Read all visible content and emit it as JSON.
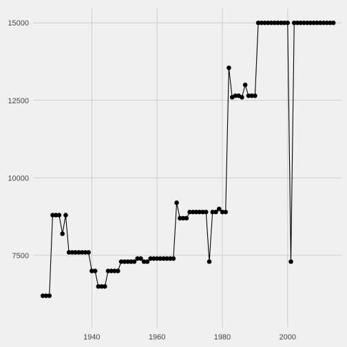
{
  "chart_data": {
    "type": "line",
    "title": "",
    "xlabel": "",
    "ylabel": "",
    "xlim": [
      1922,
      2016.5
    ],
    "ylim": [
      5170,
      15470
    ],
    "x_ticks": [
      1940,
      1960,
      1980,
      2000
    ],
    "y_ticks": [
      7500,
      10000,
      12500,
      15000
    ],
    "x_tick_labels": [
      "1940",
      "1960",
      "1980",
      "2000"
    ],
    "y_tick_labels": [
      "7500",
      "10000",
      "12500",
      "15000"
    ],
    "grid": true,
    "legend": "none",
    "series": [
      {
        "x": [
          1925,
          1926,
          1927,
          1928,
          1929,
          1930,
          1931,
          1932,
          1933,
          1934,
          1935,
          1936,
          1937,
          1938,
          1939,
          1940,
          1941,
          1942,
          1943,
          1944,
          1945,
          1946,
          1947,
          1948,
          1949,
          1950,
          1951,
          1952,
          1953,
          1954,
          1955,
          1956,
          1957,
          1958,
          1959,
          1960,
          1961,
          1962,
          1963,
          1964,
          1965,
          1966,
          1967,
          1968,
          1969,
          1970,
          1971,
          1972,
          1973,
          1974,
          1975,
          1976,
          1977,
          1978,
          1979,
          1980,
          1981,
          1982,
          1983,
          1984,
          1985,
          1986,
          1987,
          1988,
          1989,
          1990,
          1991,
          1992,
          1993,
          1994,
          1995,
          1996,
          1997,
          1998,
          1999,
          2000,
          2001,
          2002,
          2003,
          2004,
          2005,
          2006,
          2007,
          2008,
          2009,
          2010,
          2011,
          2012,
          2013,
          2014
        ],
        "y": [
          6200,
          6200,
          6200,
          8800,
          8800,
          8800,
          8200,
          8800,
          7600,
          7600,
          7600,
          7600,
          7600,
          7600,
          7600,
          7000,
          7000,
          6500,
          6500,
          6500,
          7000,
          7000,
          7000,
          7000,
          7300,
          7300,
          7300,
          7300,
          7300,
          7400,
          7400,
          7300,
          7300,
          7400,
          7400,
          7400,
          7400,
          7400,
          7400,
          7400,
          7400,
          9200,
          8700,
          8700,
          8700,
          8900,
          8900,
          8900,
          8900,
          8900,
          8900,
          7300,
          8900,
          8900,
          9000,
          8900,
          8900,
          13550,
          12600,
          12650,
          12650,
          12600,
          13000,
          12650,
          12650,
          12650,
          15000,
          15000,
          15000,
          15000,
          15000,
          15000,
          15000,
          15000,
          15000,
          15000,
          7300,
          15000,
          15000,
          15000,
          15000,
          15000,
          15000,
          15000,
          15000,
          15000,
          15000,
          15000,
          15000,
          15000
        ],
        "color": "#000000"
      }
    ]
  }
}
